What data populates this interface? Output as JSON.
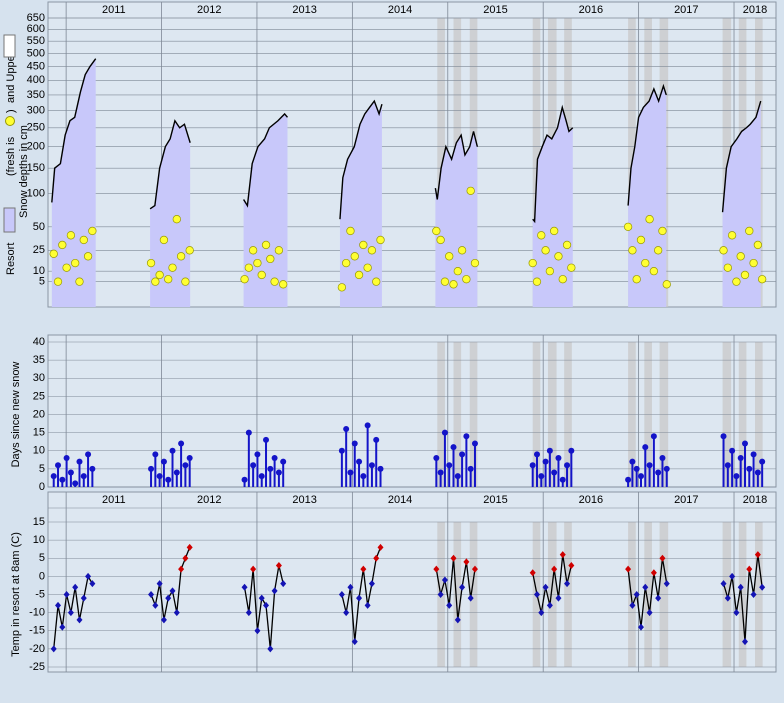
{
  "chart_data": [
    {
      "type": "line",
      "scale": "sqrt",
      "ylabel_parts": [
        "Resort",
        "(fresh is",
        ")",
        "and Upper"
      ],
      "ylabel": "Snow depths in cm",
      "upper_color": "#ffffff",
      "xlim": [
        2010.81,
        2018.44
      ],
      "xticks": [
        2011,
        2012,
        2013,
        2014,
        2015,
        2016,
        2017,
        2018
      ],
      "xtick_labels": true,
      "ylim": [
        0,
        650
      ],
      "yticks": [
        5,
        10,
        25,
        50,
        100,
        150,
        200,
        250,
        300,
        350,
        400,
        450,
        500,
        550,
        600,
        650
      ],
      "grid": true,
      "bands": [
        [
          2014.89,
          2014.97
        ],
        [
          2015.06,
          2015.14
        ],
        [
          2015.23,
          2015.31
        ],
        [
          2015.89,
          2015.97
        ],
        [
          2016.05,
          2016.14
        ],
        [
          2016.22,
          2016.3
        ],
        [
          2016.89,
          2016.97
        ],
        [
          2017.06,
          2017.14
        ],
        [
          2017.22,
          2017.31
        ],
        [
          2017.88,
          2017.97
        ],
        [
          2018.05,
          2018.13
        ],
        [
          2018.22,
          2018.3
        ]
      ],
      "series": [
        {
          "type": "area",
          "color": "#c8c8fa",
          "line_color": "#000000",
          "x": [
            2010.85,
            2010.88,
            2010.94,
            2010.99,
            2011.04,
            2011.09,
            2011.15,
            2011.2,
            2011.25,
            2011.31,
            2011.88,
            2011.93,
            2011.98,
            2012.04,
            2012.09,
            2012.14,
            2012.19,
            2012.24,
            2012.3,
            2012.86,
            2012.9,
            2012.95,
            2013.01,
            2013.08,
            2013.13,
            2013.22,
            2013.29,
            2013.32,
            2013.87,
            2013.9,
            2013.95,
            2014.02,
            2014.08,
            2014.13,
            2014.18,
            2014.23,
            2014.28,
            2014.31,
            2014.87,
            2014.89,
            2014.93,
            2014.98,
            2015.04,
            2015.09,
            2015.14,
            2015.18,
            2015.23,
            2015.27,
            2015.31,
            2015.89,
            2015.91,
            2015.94,
            2015.99,
            2016.04,
            2016.09,
            2016.15,
            2016.2,
            2016.24,
            2016.27,
            2016.31,
            2016.89,
            2016.92,
            2016.96,
            2017.0,
            2017.05,
            2017.11,
            2017.16,
            2017.21,
            2017.26,
            2017.29,
            2017.88,
            2017.92,
            2017.97,
            2018.03,
            2018.08,
            2018.13,
            2018.17,
            2018.23,
            2018.28
          ],
          "values": [
            85,
            150,
            160,
            230,
            270,
            280,
            360,
            420,
            450,
            480,
            75,
            80,
            150,
            200,
            220,
            270,
            250,
            260,
            210,
            90,
            80,
            160,
            200,
            220,
            250,
            270,
            290,
            280,
            60,
            130,
            170,
            200,
            260,
            290,
            310,
            330,
            290,
            320,
            110,
            90,
            150,
            200,
            170,
            210,
            230,
            180,
            200,
            240,
            200,
            60,
            57,
            170,
            200,
            230,
            220,
            250,
            310,
            270,
            240,
            250,
            80,
            150,
            200,
            280,
            310,
            330,
            370,
            330,
            380,
            350,
            70,
            150,
            200,
            220,
            240,
            250,
            260,
            280,
            330
          ]
        },
        {
          "type": "scatter",
          "color": "#ffff33",
          "line_color": "#999900",
          "x": [
            2010.87,
            2010.915,
            2010.96,
            2011.005,
            2011.05,
            2011.095,
            2011.14,
            2011.185,
            2011.23,
            2011.275,
            2011.89,
            2011.935,
            2011.98,
            2012.025,
            2012.07,
            2012.115,
            2012.16,
            2012.205,
            2012.25,
            2012.295,
            2012.87,
            2012.915,
            2012.96,
            2013.005,
            2013.05,
            2013.095,
            2013.14,
            2013.185,
            2013.23,
            2013.275,
            2013.89,
            2013.935,
            2013.98,
            2014.025,
            2014.07,
            2014.115,
            2014.16,
            2014.205,
            2014.25,
            2014.295,
            2014.88,
            2014.925,
            2014.97,
            2015.015,
            2015.06,
            2015.105,
            2015.15,
            2015.195,
            2015.24,
            2015.285,
            2015.89,
            2015.935,
            2015.98,
            2016.025,
            2016.07,
            2016.115,
            2016.16,
            2016.205,
            2016.25,
            2016.295,
            2016.89,
            2016.935,
            2016.98,
            2017.025,
            2017.07,
            2017.115,
            2017.16,
            2017.205,
            2017.25,
            2017.295,
            2017.89,
            2017.935,
            2017.98,
            2018.025,
            2018.07,
            2018.115,
            2018.16,
            2018.205,
            2018.25,
            2018.295
          ],
          "values": [
            22,
            5,
            30,
            12,
            40,
            15,
            5,
            35,
            20,
            45,
            15,
            5,
            8,
            35,
            6,
            12,
            60,
            20,
            5,
            25,
            6,
            12,
            25,
            15,
            8,
            30,
            18,
            5,
            25,
            4,
            3,
            15,
            45,
            20,
            8,
            30,
            12,
            25,
            5,
            35,
            45,
            35,
            5,
            20,
            4,
            10,
            25,
            6,
            105,
            15,
            15,
            5,
            40,
            25,
            10,
            45,
            20,
            6,
            30,
            12,
            50,
            25,
            6,
            35,
            15,
            60,
            10,
            25,
            45,
            4,
            25,
            12,
            40,
            5,
            20,
            8,
            45,
            15,
            30,
            6
          ]
        }
      ]
    },
    {
      "type": "stem",
      "ylabel": "Days since new snow",
      "xlim": [
        2010.81,
        2018.44
      ],
      "xticks": [
        2011,
        2012,
        2013,
        2014,
        2015,
        2016,
        2017,
        2018
      ],
      "xtick_labels": false,
      "ylim": [
        0,
        40
      ],
      "yticks": [
        0,
        5,
        10,
        15,
        20,
        25,
        30,
        35,
        40
      ],
      "grid": true,
      "bands": [
        [
          2014.89,
          2014.97
        ],
        [
          2015.06,
          2015.14
        ],
        [
          2015.23,
          2015.31
        ],
        [
          2015.89,
          2015.97
        ],
        [
          2016.05,
          2016.14
        ],
        [
          2016.22,
          2016.3
        ],
        [
          2016.89,
          2016.97
        ],
        [
          2017.06,
          2017.14
        ],
        [
          2017.22,
          2017.31
        ],
        [
          2017.88,
          2017.97
        ],
        [
          2018.05,
          2018.13
        ],
        [
          2018.22,
          2018.3
        ]
      ],
      "series": [
        {
          "type": "stem",
          "color": "#1414c8",
          "x": [
            2010.87,
            2010.915,
            2010.96,
            2011.005,
            2011.05,
            2011.095,
            2011.14,
            2011.185,
            2011.23,
            2011.275,
            2011.89,
            2011.935,
            2011.98,
            2012.025,
            2012.07,
            2012.115,
            2012.16,
            2012.205,
            2012.25,
            2012.295,
            2012.87,
            2012.915,
            2012.96,
            2013.005,
            2013.05,
            2013.095,
            2013.14,
            2013.185,
            2013.23,
            2013.275,
            2013.89,
            2013.935,
            2013.98,
            2014.025,
            2014.07,
            2014.115,
            2014.16,
            2014.205,
            2014.25,
            2014.295,
            2014.88,
            2014.925,
            2014.97,
            2015.015,
            2015.06,
            2015.105,
            2015.15,
            2015.195,
            2015.24,
            2015.285,
            2015.89,
            2015.935,
            2015.98,
            2016.025,
            2016.07,
            2016.115,
            2016.16,
            2016.205,
            2016.25,
            2016.295,
            2016.89,
            2016.935,
            2016.98,
            2017.025,
            2017.07,
            2017.115,
            2017.16,
            2017.205,
            2017.25,
            2017.295,
            2017.89,
            2017.935,
            2017.98,
            2018.025,
            2018.07,
            2018.115,
            2018.16,
            2018.205,
            2018.25,
            2018.295
          ],
          "values": [
            3,
            6,
            2,
            8,
            4,
            1,
            7,
            3,
            9,
            5,
            5,
            9,
            3,
            7,
            2,
            10,
            4,
            12,
            6,
            8,
            2,
            15,
            6,
            9,
            3,
            13,
            5,
            8,
            4,
            7,
            10,
            16,
            4,
            12,
            7,
            3,
            17,
            6,
            13,
            5,
            8,
            4,
            15,
            6,
            11,
            3,
            9,
            14,
            5,
            12,
            6,
            9,
            3,
            7,
            10,
            4,
            8,
            2,
            6,
            10,
            2,
            7,
            5,
            3,
            11,
            6,
            14,
            4,
            8,
            5,
            14,
            6,
            10,
            3,
            8,
            12,
            5,
            9,
            4,
            7
          ]
        }
      ]
    },
    {
      "type": "line",
      "ylabel": "Temp in resort at 8am (C)",
      "xlim": [
        2010.81,
        2018.44
      ],
      "xticks": [
        2011,
        2012,
        2013,
        2014,
        2015,
        2016,
        2017,
        2018
      ],
      "xtick_labels": true,
      "ylim": [
        -25,
        15
      ],
      "yticks": [
        -25,
        -20,
        -15,
        -10,
        -5,
        0,
        5,
        10,
        15
      ],
      "grid": true,
      "bands": [
        [
          2014.89,
          2014.97
        ],
        [
          2015.06,
          2015.14
        ],
        [
          2015.23,
          2015.31
        ],
        [
          2015.89,
          2015.97
        ],
        [
          2016.05,
          2016.14
        ],
        [
          2016.22,
          2016.3
        ],
        [
          2016.89,
          2016.97
        ],
        [
          2017.06,
          2017.14
        ],
        [
          2017.22,
          2017.31
        ],
        [
          2017.88,
          2017.97
        ],
        [
          2018.05,
          2018.13
        ],
        [
          2018.22,
          2018.3
        ]
      ],
      "series": [
        {
          "type": "line-points",
          "line_color": "#000000",
          "positive_color": "#d00000",
          "negative_color": "#1414b4",
          "x": [
            2010.87,
            2010.915,
            2010.96,
            2011.005,
            2011.05,
            2011.095,
            2011.14,
            2011.185,
            2011.23,
            2011.275,
            2011.89,
            2011.935,
            2011.98,
            2012.025,
            2012.07,
            2012.115,
            2012.16,
            2012.205,
            2012.25,
            2012.295,
            2012.87,
            2012.915,
            2012.96,
            2013.005,
            2013.05,
            2013.095,
            2013.14,
            2013.185,
            2013.23,
            2013.275,
            2013.89,
            2013.935,
            2013.98,
            2014.025,
            2014.07,
            2014.115,
            2014.16,
            2014.205,
            2014.25,
            2014.295,
            2014.88,
            2014.925,
            2014.97,
            2015.015,
            2015.06,
            2015.105,
            2015.15,
            2015.195,
            2015.24,
            2015.285,
            2015.89,
            2015.935,
            2015.98,
            2016.025,
            2016.07,
            2016.115,
            2016.16,
            2016.205,
            2016.25,
            2016.295,
            2016.89,
            2016.935,
            2016.98,
            2017.025,
            2017.07,
            2017.115,
            2017.16,
            2017.205,
            2017.25,
            2017.295,
            2017.89,
            2017.935,
            2017.98,
            2018.025,
            2018.07,
            2018.115,
            2018.16,
            2018.205,
            2018.25,
            2018.295
          ],
          "values": [
            -20,
            -8,
            -14,
            -5,
            -10,
            -3,
            -12,
            -6,
            0,
            -2,
            -5,
            -8,
            -2,
            -12,
            -6,
            -4,
            -10,
            2,
            5,
            8,
            -3,
            -10,
            2,
            -15,
            -6,
            -8,
            -20,
            -4,
            3,
            -2,
            -5,
            -10,
            -3,
            -18,
            -6,
            2,
            -8,
            -2,
            5,
            8,
            2,
            -5,
            -1,
            -8,
            5,
            -12,
            -3,
            4,
            -6,
            2,
            1,
            -5,
            -10,
            -3,
            -8,
            2,
            -6,
            6,
            -2,
            3,
            2,
            -8,
            -5,
            -14,
            -3,
            -10,
            1,
            -6,
            5,
            -2,
            -2,
            -6,
            0,
            -10,
            -3,
            -18,
            2,
            -5,
            6,
            -3
          ]
        }
      ]
    }
  ]
}
